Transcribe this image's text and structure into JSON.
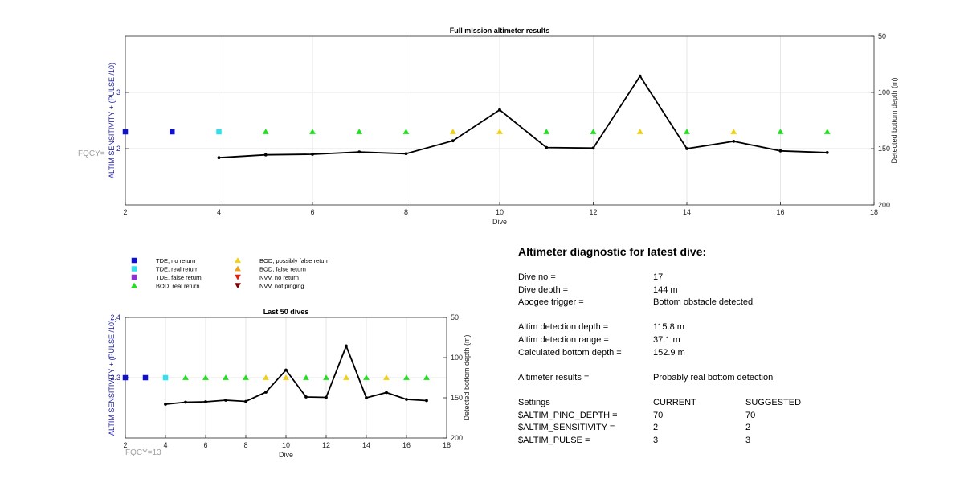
{
  "chart_data": [
    {
      "type": "line",
      "title": "Full mission altimeter results",
      "xlabel": "Dive",
      "ylabel": "ALTIM SENSITIVITY + (PULSE /10)",
      "ylabel_right": "Detected bottom depth (m)",
      "xlim": [
        2,
        18
      ],
      "ylim": [
        1,
        4
      ],
      "ylim_right": [
        50,
        200
      ],
      "right_axis_reversed": true,
      "xticks": [
        2,
        4,
        6,
        8,
        10,
        12,
        14,
        16,
        18
      ],
      "yticks": [
        2,
        3
      ],
      "yticks_right": [
        50,
        100,
        150,
        200
      ],
      "grid": true,
      "annotation": "FQCY=",
      "series": [
        {
          "kind": "markers",
          "marker": "square",
          "color": "#1010d0",
          "points": [
            [
              2,
              2.3
            ],
            [
              3,
              2.3
            ]
          ]
        },
        {
          "kind": "markers",
          "marker": "square",
          "color": "#30e0f0",
          "points": [
            [
              4,
              2.3
            ]
          ]
        },
        {
          "kind": "markers",
          "marker": "triangle",
          "color": "#20e020",
          "points": [
            [
              5,
              2.3
            ],
            [
              6,
              2.3
            ],
            [
              7,
              2.3
            ],
            [
              8,
              2.3
            ],
            [
              11,
              2.3
            ],
            [
              12,
              2.3
            ],
            [
              14,
              2.3
            ],
            [
              16,
              2.3
            ],
            [
              17,
              2.3
            ]
          ]
        },
        {
          "kind": "markers",
          "marker": "triangle",
          "color": "#f0d010",
          "points": [
            [
              9,
              2.3
            ],
            [
              10,
              2.3
            ],
            [
              13,
              2.3
            ],
            [
              15,
              2.3
            ]
          ]
        },
        {
          "kind": "line",
          "axis": "right",
          "color": "#000000",
          "x": [
            4,
            5,
            6,
            7,
            8,
            9,
            10,
            11,
            12,
            13,
            14,
            15,
            16,
            17
          ],
          "y": [
            158,
            155.5,
            155,
            153,
            154.5,
            143,
            115.5,
            149,
            149.5,
            85.5,
            150,
            143.5,
            152,
            153.5
          ]
        }
      ]
    },
    {
      "type": "line",
      "title": "Last 50 dives",
      "xlabel": "Dive",
      "ylabel": "ALTIM SENSITIVITY + (PULSE /10)",
      "ylabel_right": "Detected bottom depth (m)",
      "xlim": [
        2,
        18
      ],
      "ylim": [
        2.2,
        2.4
      ],
      "ylim_right": [
        50,
        200
      ],
      "right_axis_reversed": true,
      "xticks": [
        2,
        4,
        6,
        8,
        10,
        12,
        14,
        16,
        18
      ],
      "yticks": [
        2.3,
        2.4
      ],
      "yticks_right": [
        50,
        100,
        150,
        200
      ],
      "grid": true,
      "annotation": "FQCY=13",
      "series": [
        {
          "kind": "markers",
          "marker": "square",
          "color": "#1010d0",
          "points": [
            [
              2,
              2.3
            ],
            [
              3,
              2.3
            ]
          ]
        },
        {
          "kind": "markers",
          "marker": "square",
          "color": "#30e0f0",
          "points": [
            [
              4,
              2.3
            ]
          ]
        },
        {
          "kind": "markers",
          "marker": "triangle",
          "color": "#20e020",
          "points": [
            [
              5,
              2.3
            ],
            [
              6,
              2.3
            ],
            [
              7,
              2.3
            ],
            [
              8,
              2.3
            ],
            [
              11,
              2.3
            ],
            [
              12,
              2.3
            ],
            [
              14,
              2.3
            ],
            [
              16,
              2.3
            ],
            [
              17,
              2.3
            ]
          ]
        },
        {
          "kind": "markers",
          "marker": "triangle",
          "color": "#f0d010",
          "points": [
            [
              9,
              2.3
            ],
            [
              10,
              2.3
            ],
            [
              13,
              2.3
            ],
            [
              15,
              2.3
            ]
          ]
        },
        {
          "kind": "line",
          "axis": "right",
          "color": "#000000",
          "x": [
            4,
            5,
            6,
            7,
            8,
            9,
            10,
            11,
            12,
            13,
            14,
            15,
            16,
            17
          ],
          "y": [
            158,
            155.5,
            155,
            153,
            154.5,
            143,
            115.5,
            149,
            149.5,
            85.5,
            150,
            143.5,
            152,
            153.5
          ]
        }
      ]
    }
  ],
  "legend": {
    "items": [
      {
        "label": "TDE, no return",
        "marker": "square",
        "color": "#1010d0"
      },
      {
        "label": "TDE, real return",
        "marker": "square",
        "color": "#30e0f0"
      },
      {
        "label": "TDE, false return",
        "marker": "square",
        "color": "#9030d0"
      },
      {
        "label": "BOD, real return",
        "marker": "triangle",
        "color": "#20e020"
      },
      {
        "label": "BOD, possibly false return",
        "marker": "triangle",
        "color": "#f0d010"
      },
      {
        "label": "BOD, false return",
        "marker": "triangle",
        "color": "#f0a010"
      },
      {
        "label": "NVV, no return",
        "marker": "triangle-down",
        "color": "#e02010"
      },
      {
        "label": "NVV, not pinging",
        "marker": "triangle-down",
        "color": "#800000"
      }
    ]
  },
  "diagnostic": {
    "title": "Altimeter diagnostic for latest dive:",
    "dive_no_label": "Dive no =",
    "dive_no": "17",
    "dive_depth_label": "Dive depth =",
    "dive_depth": "144 m",
    "apogee_label": "Apogee trigger =",
    "apogee": "Bottom obstacle detected",
    "det_depth_label": "Altim detection depth =",
    "det_depth": "115.8 m",
    "det_range_label": "Altim detection range =",
    "det_range": "37.1 m",
    "calc_depth_label": "Calculated bottom depth =",
    "calc_depth": "152.9 m",
    "results_label": "Altimeter results =",
    "results": "Probably real bottom detection",
    "settings_label": "Settings",
    "current_label": "CURRENT",
    "suggested_label": "SUGGESTED",
    "settings": [
      {
        "name": "$ALTIM_PING_DEPTH =",
        "current": "70",
        "suggested": "70"
      },
      {
        "name": "$ALTIM_SENSITIVITY =",
        "current": "2",
        "suggested": "2"
      },
      {
        "name": "$ALTIM_PULSE =",
        "current": "3",
        "suggested": "3"
      }
    ]
  }
}
